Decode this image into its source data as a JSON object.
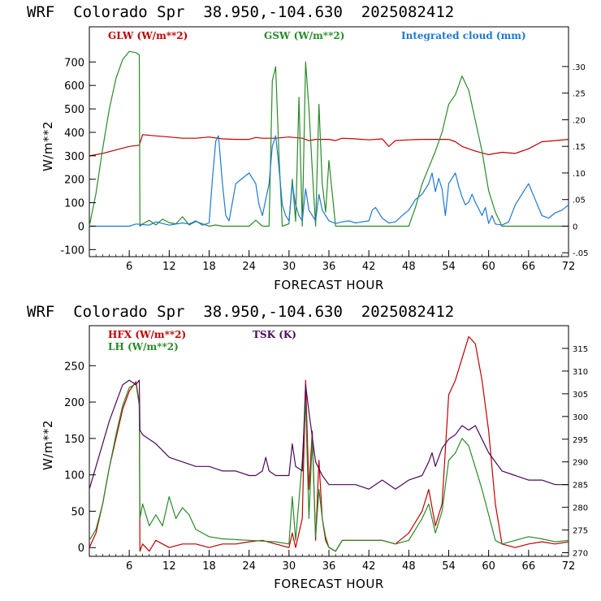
{
  "chart_data": [
    {
      "type": "line",
      "title": "WRF  Colorado Spr  38.950,-104.630  2025082412",
      "xlabel": "FORECAST HOUR",
      "ylabel": "W/m**2",
      "xlim": [
        0,
        72
      ],
      "ylim": [
        -130,
        850
      ],
      "y2lim": [
        -0.0573,
        0.3747
      ],
      "xticks": [
        "6",
        "12",
        "18",
        "24",
        "30",
        "36",
        "42",
        "48",
        "54",
        "60",
        "66",
        "72"
      ],
      "yticks": [
        "-100",
        "0",
        "100",
        "200",
        "300",
        "400",
        "500",
        "600",
        "700"
      ],
      "y2ticks": [
        "-.05",
        "0",
        ".05",
        ".10",
        ".15",
        ".20",
        ".25",
        ".30"
      ],
      "legend_position": "top",
      "series": [
        {
          "name": "GLW (W/m**2)",
          "axis": "left",
          "color": "#c00000",
          "x": [
            0,
            2,
            4,
            6,
            7.5,
            8,
            10,
            12,
            14,
            16,
            18,
            20,
            22,
            24,
            25,
            26,
            28,
            30,
            32,
            33,
            34,
            36,
            37,
            38,
            40,
            42,
            44,
            45,
            46,
            48,
            50,
            52,
            54,
            55,
            56,
            58,
            60,
            62,
            64,
            66,
            68,
            70,
            72
          ],
          "y": [
            300,
            310,
            325,
            340,
            345,
            390,
            385,
            380,
            375,
            375,
            380,
            372,
            370,
            370,
            378,
            375,
            375,
            380,
            375,
            365,
            370,
            370,
            365,
            375,
            372,
            368,
            372,
            340,
            365,
            368,
            370,
            370,
            370,
            360,
            340,
            320,
            305,
            315,
            310,
            330,
            360,
            365,
            370
          ]
        },
        {
          "name": "GSW (W/m**2)",
          "axis": "left",
          "color": "#2a8a2a",
          "x": [
            0,
            1,
            2,
            3,
            4,
            5,
            6,
            7,
            7.5,
            7.6,
            8,
            9,
            10,
            11,
            12,
            13,
            14,
            15,
            16,
            17,
            18,
            19,
            20,
            21,
            22,
            23,
            24,
            25,
            26,
            27,
            27.5,
            28,
            28.5,
            29,
            30,
            30.5,
            31,
            31.5,
            32,
            32.5,
            33,
            33.5,
            34,
            34.5,
            35,
            35.5,
            36,
            37,
            40,
            44,
            46,
            48,
            49,
            50,
            51,
            52,
            53,
            54,
            55,
            56,
            57,
            58,
            59,
            60,
            61,
            62,
            66,
            72
          ],
          "y": [
            0,
            140,
            330,
            500,
            630,
            710,
            745,
            740,
            730,
            0,
            10,
            25,
            5,
            30,
            15,
            10,
            40,
            5,
            20,
            10,
            0,
            5,
            0,
            0,
            0,
            0,
            0,
            25,
            0,
            0,
            620,
            680,
            300,
            0,
            10,
            200,
            20,
            550,
            0,
            700,
            500,
            240,
            0,
            520,
            180,
            60,
            280,
            0,
            0,
            0,
            0,
            0,
            80,
            180,
            250,
            320,
            400,
            520,
            560,
            640,
            580,
            450,
            320,
            150,
            60,
            0,
            0,
            0
          ]
        },
        {
          "name": "Integrated cloud (mm)",
          "axis": "right",
          "color": "#1f78d0",
          "x": [
            0,
            2,
            4,
            6,
            7,
            8,
            9,
            10,
            12,
            14,
            15,
            16,
            17,
            18,
            18.5,
            19,
            19.4,
            20,
            20.5,
            21,
            22,
            23,
            24,
            25,
            25.5,
            26,
            27,
            27.5,
            28,
            28.5,
            29,
            29.5,
            30,
            30.5,
            31,
            31.5,
            32,
            32.5,
            33,
            34,
            34.5,
            35,
            36,
            37,
            38,
            39,
            40,
            41,
            42,
            42.5,
            43,
            44,
            45,
            46,
            47,
            48,
            49,
            50,
            51,
            51.5,
            52,
            52.5,
            53,
            53.5,
            54,
            55,
            55.5,
            56,
            56.5,
            57,
            57.5,
            58,
            59,
            59.5,
            60,
            60.5,
            61,
            62,
            63,
            64,
            65,
            66,
            67,
            68,
            69,
            70,
            71,
            72
          ],
          "y": [
            0,
            0,
            0,
            0,
            0.004,
            0.003,
            0.002,
            0.008,
            0.002,
            0.006,
            0.004,
            0.01,
            0.002,
            0.006,
            0.09,
            0.16,
            0.17,
            0.08,
            0.02,
            0.01,
            0.08,
            0.09,
            0.1,
            0.08,
            0.04,
            0.02,
            0.08,
            0.15,
            0.17,
            0.11,
            0.04,
            0.02,
            0.01,
            0.08,
            0.04,
            0.02,
            0.01,
            0.07,
            0.03,
            0.01,
            0.06,
            0.03,
            0.01,
            0.005,
            0.008,
            0.01,
            0.006,
            0.008,
            0.01,
            0.03,
            0.035,
            0.015,
            0.006,
            0.008,
            0.02,
            0.03,
            0.05,
            0.06,
            0.08,
            0.1,
            0.065,
            0.09,
            0.07,
            0.02,
            0.08,
            0.1,
            0.075,
            0.055,
            0.04,
            0.045,
            0.06,
            0.045,
            0.02,
            0.035,
            0.005,
            0.02,
            0.004,
            0.002,
            0.008,
            0.04,
            0.06,
            0.08,
            0.05,
            0.02,
            0.015,
            0.025,
            0.03,
            0.04
          ]
        }
      ]
    },
    {
      "type": "line",
      "title": "WRF  Colorado Spr  38.950,-104.630  2025082412",
      "xlabel": "FORECAST HOUR",
      "ylabel": "W/m**2",
      "xlim": [
        0,
        72
      ],
      "ylim": [
        -12,
        305
      ],
      "y2lim": [
        269.2,
        320
      ],
      "xticks": [
        "6",
        "12",
        "18",
        "24",
        "30",
        "36",
        "42",
        "48",
        "54",
        "60",
        "66",
        "72"
      ],
      "yticks": [
        "0",
        "50",
        "100",
        "150",
        "200",
        "250"
      ],
      "y2ticks": [
        "270",
        "275",
        "280",
        "285",
        "290",
        "295",
        "300",
        "305",
        "310",
        "315"
      ],
      "legend_position": "top-left",
      "series": [
        {
          "name": "HFX (W/m**2)",
          "axis": "left",
          "color": "#c00000",
          "x": [
            0,
            1,
            2,
            3,
            4,
            5,
            6,
            7,
            7.5,
            7.6,
            8,
            9,
            10,
            12,
            14,
            16,
            18,
            20,
            22,
            24,
            26,
            28,
            30,
            30.5,
            31,
            32,
            32.5,
            33,
            33.5,
            34,
            34.5,
            35,
            35.5,
            36,
            37,
            38,
            40,
            44,
            46,
            48,
            50,
            51,
            52,
            53,
            54,
            55,
            56,
            57,
            58,
            59,
            60,
            61,
            62,
            64,
            66,
            68,
            70,
            72
          ],
          "y": [
            0,
            20,
            60,
            110,
            150,
            190,
            215,
            228,
            200,
            -5,
            5,
            -5,
            10,
            0,
            5,
            5,
            0,
            5,
            5,
            8,
            10,
            5,
            0,
            20,
            0,
            40,
            230,
            80,
            160,
            10,
            120,
            40,
            10,
            0,
            -5,
            10,
            10,
            10,
            5,
            20,
            50,
            80,
            30,
            60,
            210,
            230,
            260,
            290,
            280,
            230,
            160,
            60,
            5,
            0,
            5,
            8,
            5,
            8
          ]
        },
        {
          "name": "LH (W/m**2)",
          "axis": "left",
          "color": "#2a8a2a",
          "x": [
            0,
            1,
            2,
            3,
            4,
            5,
            6,
            7,
            7.5,
            7.6,
            8,
            9,
            10,
            11,
            12,
            13,
            14,
            15,
            16,
            18,
            20,
            24,
            28,
            30,
            30.5,
            31,
            32,
            32.5,
            33,
            33.5,
            34,
            34.5,
            35,
            35.5,
            36,
            37,
            38,
            40,
            44,
            46,
            48,
            50,
            51,
            52,
            53,
            54,
            55,
            56,
            57,
            58,
            59,
            60,
            61,
            62,
            64,
            66,
            68,
            70,
            72
          ],
          "y": [
            10,
            25,
            60,
            110,
            155,
            195,
            220,
            225,
            195,
            40,
            60,
            30,
            45,
            30,
            70,
            40,
            55,
            45,
            25,
            15,
            12,
            10,
            8,
            5,
            70,
            10,
            120,
            200,
            40,
            150,
            15,
            80,
            40,
            15,
            0,
            -5,
            10,
            10,
            10,
            5,
            10,
            40,
            60,
            20,
            50,
            120,
            130,
            150,
            140,
            110,
            80,
            45,
            10,
            5,
            10,
            15,
            12,
            8,
            10
          ]
        },
        {
          "name": "TSK (K)",
          "axis": "right",
          "color": "#4a0a5a",
          "x": [
            0,
            1,
            2,
            3,
            4,
            5,
            6,
            7,
            7.5,
            7.6,
            8,
            10,
            12,
            14,
            16,
            18,
            20,
            22,
            24,
            25,
            26,
            26.5,
            27,
            28,
            29,
            30,
            30.5,
            31,
            32,
            32.5,
            33,
            34,
            35,
            36,
            38,
            40,
            42,
            44,
            46,
            48,
            50,
            51,
            51.5,
            52,
            53,
            54,
            55,
            56,
            57,
            58,
            59,
            60,
            62,
            64,
            66,
            68,
            70,
            72
          ],
          "y": [
            284,
            289,
            294,
            299,
            303,
            307,
            308,
            307,
            308,
            297,
            296,
            294,
            291,
            290,
            289,
            289,
            288,
            288,
            287,
            287,
            288,
            291,
            288,
            287,
            287,
            287,
            294,
            289,
            288,
            307,
            301,
            290,
            287,
            285,
            285,
            285,
            284,
            286,
            284,
            286,
            287,
            290,
            292,
            289,
            293,
            295,
            296,
            298,
            297,
            298,
            295,
            292,
            288,
            287,
            286,
            286,
            285,
            285
          ]
        }
      ]
    }
  ]
}
